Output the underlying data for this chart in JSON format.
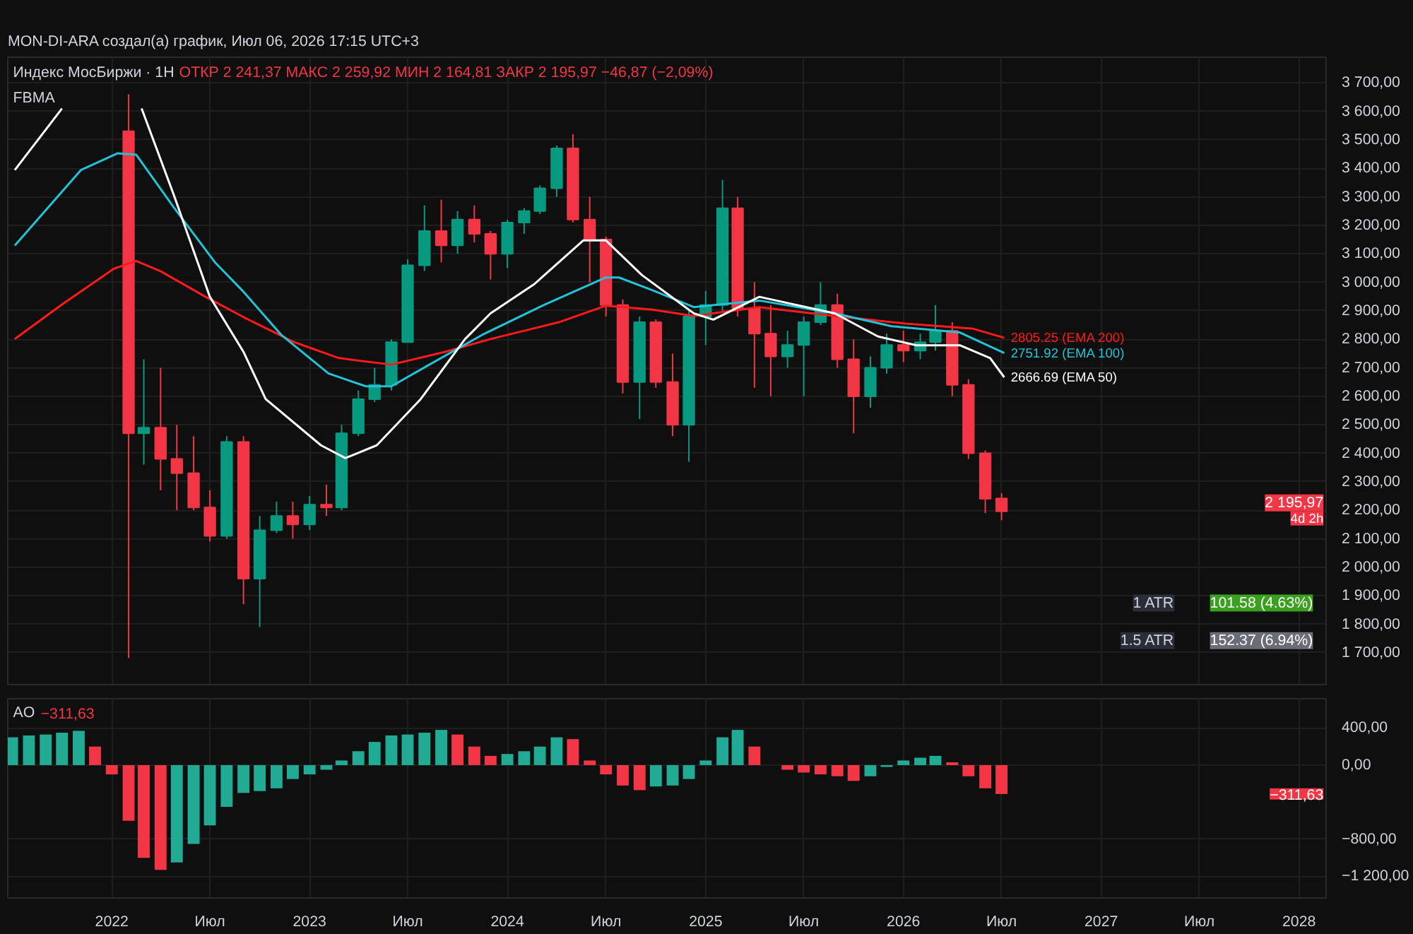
{
  "chart_data": [
    {
      "type": "candlestick",
      "title": "Индекс МосБиржи · 1Н",
      "subtitle": "ОТКР 2 241,37  МАКС 2 259,92  МИН 2 164,81  ЗАКР 2 195,97  −46,87 (−2,09%)",
      "annotations": [
        "MON-DI-ARA создал(а) график, Июл 06, 2026 17:15 UTC+3",
        "FBMA",
        "1 ATR",
        "101.58 (4.63%)",
        "1.5 ATR",
        "152.37 (6.94%)",
        "2 195,97",
        "4d 2h"
      ],
      "x": [
        "2022-02",
        "2022-03",
        "2022-04",
        "2022-05",
        "2022-06",
        "2022-07",
        "2022-08",
        "2022-09",
        "2022-10",
        "2022-11",
        "2022-12",
        "2023-01",
        "2023-02",
        "2023-03",
        "2023-04",
        "2023-05",
        "2023-06",
        "2023-07",
        "2023-08",
        "2023-09",
        "2023-10",
        "2023-11",
        "2023-12",
        "2024-01",
        "2024-02",
        "2024-03",
        "2024-04",
        "2024-05",
        "2024-06",
        "2024-07",
        "2024-08",
        "2024-09",
        "2024-10",
        "2024-11",
        "2024-12",
        "2025-01",
        "2025-02",
        "2025-03",
        "2025-04",
        "2025-05",
        "2025-06",
        "2025-07",
        "2025-08",
        "2025-09",
        "2025-10",
        "2025-11",
        "2025-12",
        "2026-01",
        "2026-02",
        "2026-03",
        "2026-04",
        "2026-05",
        "2026-06",
        "2026-07"
      ],
      "ohlc": [
        [
          3530,
          3660,
          1681,
          2470
        ],
        [
          2470,
          2730,
          2360,
          2490
        ],
        [
          2490,
          2700,
          2270,
          2380
        ],
        [
          2380,
          2500,
          2200,
          2330
        ],
        [
          2330,
          2460,
          2200,
          2210
        ],
        [
          2210,
          2270,
          2090,
          2110
        ],
        [
          2110,
          2460,
          2100,
          2440
        ],
        [
          2440,
          2460,
          1870,
          1960
        ],
        [
          1960,
          2180,
          1790,
          2130
        ],
        [
          2130,
          2230,
          2120,
          2180
        ],
        [
          2180,
          2230,
          2100,
          2150
        ],
        [
          2150,
          2250,
          2130,
          2220
        ],
        [
          2220,
          2290,
          2180,
          2210
        ],
        [
          2210,
          2500,
          2200,
          2470
        ],
        [
          2470,
          2620,
          2460,
          2590
        ],
        [
          2590,
          2700,
          2580,
          2640
        ],
        [
          2640,
          2800,
          2620,
          2790
        ],
        [
          2790,
          3080,
          2790,
          3060
        ],
        [
          3060,
          3270,
          3040,
          3180
        ],
        [
          3180,
          3290,
          3070,
          3130
        ],
        [
          3130,
          3250,
          3100,
          3220
        ],
        [
          3220,
          3270,
          3140,
          3170
        ],
        [
          3170,
          3180,
          3010,
          3100
        ],
        [
          3100,
          3220,
          3050,
          3210
        ],
        [
          3210,
          3260,
          3170,
          3250
        ],
        [
          3250,
          3340,
          3240,
          3330
        ],
        [
          3330,
          3480,
          3300,
          3470
        ],
        [
          3470,
          3520,
          3210,
          3220
        ],
        [
          3220,
          3300,
          3000,
          3150
        ],
        [
          3150,
          3160,
          2880,
          2920
        ],
        [
          2920,
          2940,
          2610,
          2650
        ],
        [
          2650,
          2880,
          2520,
          2860
        ],
        [
          2860,
          2870,
          2630,
          2650
        ],
        [
          2650,
          2750,
          2460,
          2500
        ],
        [
          2500,
          2900,
          2370,
          2880
        ],
        [
          2880,
          2970,
          2780,
          2920
        ],
        [
          2920,
          3360,
          2900,
          3260
        ],
        [
          3260,
          3300,
          2880,
          2910
        ],
        [
          2910,
          3000,
          2630,
          2820
        ],
        [
          2820,
          2920,
          2600,
          2740
        ],
        [
          2740,
          2830,
          2700,
          2780
        ],
        [
          2780,
          2880,
          2600,
          2860
        ],
        [
          2860,
          3000,
          2850,
          2920
        ],
        [
          2920,
          2960,
          2700,
          2730
        ],
        [
          2730,
          2800,
          2470,
          2600
        ],
        [
          2600,
          2740,
          2560,
          2700
        ],
        [
          2700,
          2820,
          2680,
          2780
        ],
        [
          2780,
          2830,
          2720,
          2760
        ],
        [
          2760,
          2820,
          2730,
          2790
        ],
        [
          2790,
          2920,
          2760,
          2830
        ],
        [
          2830,
          2860,
          2600,
          2640
        ],
        [
          2640,
          2660,
          2380,
          2400
        ],
        [
          2400,
          2410,
          2190,
          2240
        ],
        [
          2241.37,
          2259.92,
          2164.81,
          2195.97
        ]
      ],
      "colors": [
        "#f23645",
        "#089981",
        "#f23645",
        "#f23645",
        "#f23645",
        "#f23645",
        "#089981",
        "#f23645",
        "#089981",
        "#089981",
        "#f23645",
        "#089981",
        "#f23645",
        "#089981",
        "#089981",
        "#089981",
        "#089981",
        "#089981",
        "#089981",
        "#f23645",
        "#089981",
        "#f23645",
        "#f23645",
        "#089981",
        "#089981",
        "#089981",
        "#089981",
        "#f23645",
        "#f23645",
        "#f23645",
        "#f23645",
        "#089981",
        "#f23645",
        "#f23645",
        "#089981",
        "#089981",
        "#089981",
        "#f23645",
        "#f23645",
        "#f23645",
        "#089981",
        "#089981",
        "#089981",
        "#f23645",
        "#f23645",
        "#089981",
        "#089981",
        "#f23645",
        "#089981",
        "#089981",
        "#f23645",
        "#f23645",
        "#f23645",
        "#f23645"
      ],
      "series": [
        {
          "type": "line",
          "name": "2805.25 (EMA 200)",
          "color": "#ff1a1a",
          "x": [
            "2021-07-06",
            "2021-10-01",
            "2022-01-05",
            "2022-02-15",
            "2022-04-01",
            "2022-06-23",
            "2022-09-01",
            "2022-12-01",
            "2023-02-24",
            "2023-06-01",
            "2023-09-08",
            "2023-12-01",
            "2024-04-05",
            "2024-07-01",
            "2024-09-25",
            "2024-12-10",
            "2025-04-10",
            "2025-08-27",
            "2026-01-05",
            "2026-05-10",
            "2026-07-06"
          ],
          "values": [
            2801,
            2922,
            3048,
            3075,
            3039,
            2949,
            2878,
            2792,
            2734,
            2711,
            2756,
            2801,
            2860,
            2918,
            2904,
            2882,
            2913,
            2882,
            2855,
            2837,
            2805.25
          ]
        },
        {
          "type": "line",
          "name": "2751.92 (EMA 100)",
          "color": "#22c3d6",
          "x": [
            "2021-07-06",
            "2021-11-05",
            "2022-01-12",
            "2022-02-15",
            "2022-04-25",
            "2022-07-10",
            "2022-09-01",
            "2022-11-10",
            "2023-02-05",
            "2023-04-15",
            "2023-06-01",
            "2023-08-10",
            "2023-11-15",
            "2024-03-10",
            "2024-07-01",
            "2024-07-25",
            "2024-09-25",
            "2024-12-10",
            "2025-04-10",
            "2025-08-27",
            "2025-12-10",
            "2026-04-15",
            "2026-07-06"
          ],
          "values": [
            3129,
            3394,
            3453,
            3448,
            3264,
            3071,
            2967,
            2815,
            2680,
            2635,
            2635,
            2711,
            2815,
            2922,
            3017,
            3017,
            2972,
            2913,
            2936,
            2891,
            2846,
            2824,
            2751.92
          ]
        },
        {
          "type": "line",
          "name": "2666.69 (EMA 50)",
          "color": "#ffffff",
          "x": [
            "2021-07-06",
            "2021-10-01",
            "2021-11-05",
            "2022-02-25",
            "2022-04-25",
            "2022-07-01",
            "2022-09-01",
            "2022-10-12",
            "2023-01-22",
            "2023-03-08",
            "2023-05-05",
            "2023-07-25",
            "2023-10-15",
            "2023-12-01",
            "2024-02-20",
            "2024-05-20",
            "2024-07-01",
            "2024-09-05",
            "2024-12-10",
            "2025-01-15",
            "2025-04-10",
            "2025-08-27",
            "2025-11-15",
            "2026-01-25",
            "2026-04-15",
            "2026-06-10",
            "2026-07-06"
          ],
          "values": [
            3394,
            3610,
            null,
            3610,
            3309,
            2949,
            2756,
            2590,
            2428,
            2383,
            2428,
            2590,
            2801,
            2891,
            2994,
            3147,
            3147,
            3026,
            2891,
            2869,
            2949,
            2891,
            2810,
            2779,
            2779,
            2734,
            2666.69
          ]
        }
      ],
      "xlim": [
        "2021-06-23",
        "2028-02-20"
      ],
      "ylim": [
        1588,
        3790
      ],
      "yticks": [
        {
          "value": 1700,
          "label": "1 700,00"
        },
        {
          "value": 1800,
          "label": "1 800,00"
        },
        {
          "value": 1900,
          "label": "1 900,00"
        },
        {
          "value": 2000,
          "label": "2 000,00"
        },
        {
          "value": 2100,
          "label": "2 100,00"
        },
        {
          "value": 2200,
          "label": "2 200,00"
        },
        {
          "value": 2300,
          "label": "2 300,00"
        },
        {
          "value": 2400,
          "label": "2 400,00"
        },
        {
          "value": 2500,
          "label": "2 500,00"
        },
        {
          "value": 2600,
          "label": "2 600,00"
        },
        {
          "value": 2700,
          "label": "2 700,00"
        },
        {
          "value": 2800,
          "label": "2 800,00"
        },
        {
          "value": 2900,
          "label": "2 900,00"
        },
        {
          "value": 3000,
          "label": "3 000,00"
        },
        {
          "value": 3100,
          "label": "3 100,00"
        },
        {
          "value": 3200,
          "label": "3 200,00"
        },
        {
          "value": 3300,
          "label": "3 300,00"
        },
        {
          "value": 3400,
          "label": "3 400,00"
        },
        {
          "value": 3500,
          "label": "3 500,00"
        },
        {
          "value": 3600,
          "label": "3 600,00"
        },
        {
          "value": 3700,
          "label": "3 700,00"
        }
      ],
      "xticks": [
        {
          "value": "2022-01-01",
          "label": null
        },
        {
          "value": "2022-07-01",
          "label": null
        },
        {
          "value": "2023-01-01",
          "label": null
        },
        {
          "value": "2023-07-01",
          "label": null
        },
        {
          "value": "2024-01-01",
          "label": null
        },
        {
          "value": "2024-07-01",
          "label": null
        },
        {
          "value": "2025-01-01",
          "label": null
        },
        {
          "value": "2025-07-01",
          "label": null
        },
        {
          "value": "2026-01-01",
          "label": null
        },
        {
          "value": "2026-07-01",
          "label": null
        },
        {
          "value": "2027-01-01",
          "label": null
        },
        {
          "value": "2027-07-01",
          "label": null
        },
        {
          "value": "2028-01-01",
          "label": null
        }
      ],
      "tick_labels": "y",
      "grid": true
    },
    {
      "type": "bar",
      "title": "AO",
      "annotations": [
        "−311,63",
        "−311,63"
      ],
      "x": [
        "2021-07",
        "2021-08",
        "2021-09",
        "2021-10",
        "2021-11",
        "2021-12",
        "2022-01",
        "2022-02",
        "2022-03",
        "2022-04",
        "2022-05",
        "2022-06",
        "2022-07",
        "2022-08",
        "2022-09",
        "2022-10",
        "2022-11",
        "2022-12",
        "2023-01",
        "2023-02",
        "2023-03",
        "2023-04",
        "2023-05",
        "2023-06",
        "2023-07",
        "2023-08",
        "2023-09",
        "2023-10",
        "2023-11",
        "2023-12",
        "2024-01",
        "2024-02",
        "2024-03",
        "2024-04",
        "2024-05",
        "2024-06",
        "2024-07",
        "2024-08",
        "2024-09",
        "2024-10",
        "2024-11",
        "2024-12",
        "2025-01",
        "2025-02",
        "2025-03",
        "2025-04",
        "2025-05",
        "2025-06",
        "2025-07",
        "2025-08",
        "2025-09",
        "2025-10",
        "2025-11",
        "2025-12",
        "2026-01",
        "2026-02",
        "2026-03",
        "2026-04",
        "2026-05",
        "2026-06",
        "2026-07"
      ],
      "values": [
        300,
        320,
        330,
        350,
        370,
        200,
        -100,
        -600,
        -1000,
        -1130,
        -1050,
        -850,
        -650,
        -450,
        -300,
        -280,
        -250,
        -150,
        -100,
        -50,
        50,
        150,
        250,
        320,
        330,
        350,
        380,
        330,
        200,
        100,
        120,
        150,
        200,
        300,
        280,
        50,
        -100,
        -220,
        -270,
        -230,
        -220,
        -150,
        50,
        300,
        380,
        200,
        0,
        -50,
        -80,
        -100,
        -120,
        -170,
        -120,
        -20,
        50,
        80,
        100,
        30,
        -120,
        -250,
        -311.63
      ],
      "colors": [
        "#22ab94",
        "#22ab94",
        "#22ab94",
        "#22ab94",
        "#22ab94",
        "#f23645",
        "#f23645",
        "#f23645",
        "#f23645",
        "#f23645",
        "#22ab94",
        "#22ab94",
        "#22ab94",
        "#22ab94",
        "#22ab94",
        "#22ab94",
        "#22ab94",
        "#22ab94",
        "#22ab94",
        "#22ab94",
        "#22ab94",
        "#22ab94",
        "#22ab94",
        "#22ab94",
        "#22ab94",
        "#22ab94",
        "#22ab94",
        "#f23645",
        "#f23645",
        "#f23645",
        "#22ab94",
        "#22ab94",
        "#22ab94",
        "#22ab94",
        "#f23645",
        "#f23645",
        "#f23645",
        "#f23645",
        "#f23645",
        "#22ab94",
        "#22ab94",
        "#22ab94",
        "#22ab94",
        "#22ab94",
        "#22ab94",
        "#f23645",
        "#f23645",
        "#f23645",
        "#f23645",
        "#f23645",
        "#f23645",
        "#f23645",
        "#22ab94",
        "#22ab94",
        "#22ab94",
        "#22ab94",
        "#22ab94",
        "#f23645",
        "#f23645",
        "#f23645",
        "#f23645"
      ],
      "xlim": [
        "2021-06-23",
        "2028-02-20"
      ],
      "ylim": [
        -1433,
        716
      ],
      "yticks": [
        {
          "value": 400,
          "label": "400,00"
        },
        {
          "value": 0,
          "label": "0,00"
        },
        {
          "value": -800,
          "label": "−800,00"
        },
        {
          "value": -1200,
          "label": "−1 200,00"
        }
      ],
      "xticks": [
        {
          "value": "2022-01-01",
          "label": "2022"
        },
        {
          "value": "2022-07-01",
          "label": "Июл"
        },
        {
          "value": "2023-01-01",
          "label": "2023"
        },
        {
          "value": "2023-07-01",
          "label": "Июл"
        },
        {
          "value": "2024-01-01",
          "label": "2024"
        },
        {
          "value": "2024-07-01",
          "label": "Июл"
        },
        {
          "value": "2025-01-01",
          "label": "2025"
        },
        {
          "value": "2025-07-01",
          "label": "Июл"
        },
        {
          "value": "2026-01-01",
          "label": "2026"
        },
        {
          "value": "2026-07-01",
          "label": "Июл"
        },
        {
          "value": "2027-01-01",
          "label": "2027"
        },
        {
          "value": "2027-07-01",
          "label": "Июл"
        },
        {
          "value": "2028-01-01",
          "label": "2028"
        }
      ],
      "grid": true
    }
  ]
}
